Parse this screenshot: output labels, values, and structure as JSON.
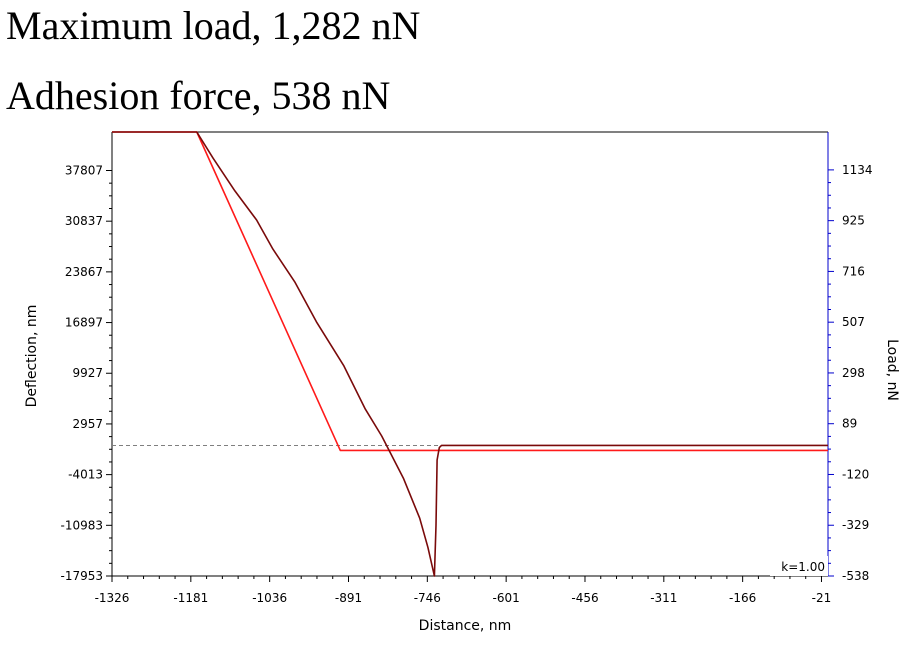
{
  "headings": {
    "line1": "Maximum load, 1,282 nN",
    "line2": "Adhesion force, 538 nN"
  },
  "chart_data": {
    "type": "line",
    "xlabel": "Distance, nm",
    "ylabel_left": "Deflection, nm",
    "ylabel_right": "Load, nN",
    "xlim": [
      -1326,
      -9
    ],
    "xticks": [
      -1326,
      -1181,
      -1036,
      -891,
      -746,
      -601,
      -456,
      -311,
      -166,
      -21
    ],
    "ylim_left": [
      -17953,
      43100
    ],
    "yticks_left": [
      37807,
      30837,
      23867,
      16897,
      9927,
      2957,
      -4013,
      -10983,
      -17953
    ],
    "ylim_right": [
      -538,
      1290
    ],
    "yticks_right": [
      1134,
      925,
      716,
      507,
      298,
      89,
      -120,
      -329,
      -538
    ],
    "annotation": "k=1.00",
    "baseline_y": 0,
    "grid": false,
    "colors": {
      "approach": "#ff1a1a",
      "retract": "#7a0a0a",
      "zero_line": "#7f7f7f",
      "right_axis": "#0000cc",
      "axis": "#000000"
    },
    "series": [
      {
        "values": [
          [
            -1326,
            43100
          ],
          [
            -1170,
            43100
          ],
          [
            -906,
            -680
          ],
          [
            -9,
            -680
          ]
        ]
      },
      {
        "values": [
          [
            -1326,
            43100
          ],
          [
            -1170,
            43100
          ],
          [
            -1140,
            39500
          ],
          [
            -1100,
            35000
          ],
          [
            -1060,
            31000
          ],
          [
            -1030,
            27000
          ],
          [
            -990,
            22500
          ],
          [
            -950,
            17000
          ],
          [
            -900,
            11000
          ],
          [
            -860,
            5000
          ],
          [
            -830,
            1300
          ],
          [
            -790,
            -4500
          ],
          [
            -760,
            -10000
          ],
          [
            -745,
            -14000
          ],
          [
            -733,
            -17953
          ],
          [
            -730,
            -11000
          ],
          [
            -728,
            -2000
          ],
          [
            -724,
            -300
          ],
          [
            -720,
            0
          ],
          [
            -9,
            0
          ]
        ]
      }
    ]
  }
}
